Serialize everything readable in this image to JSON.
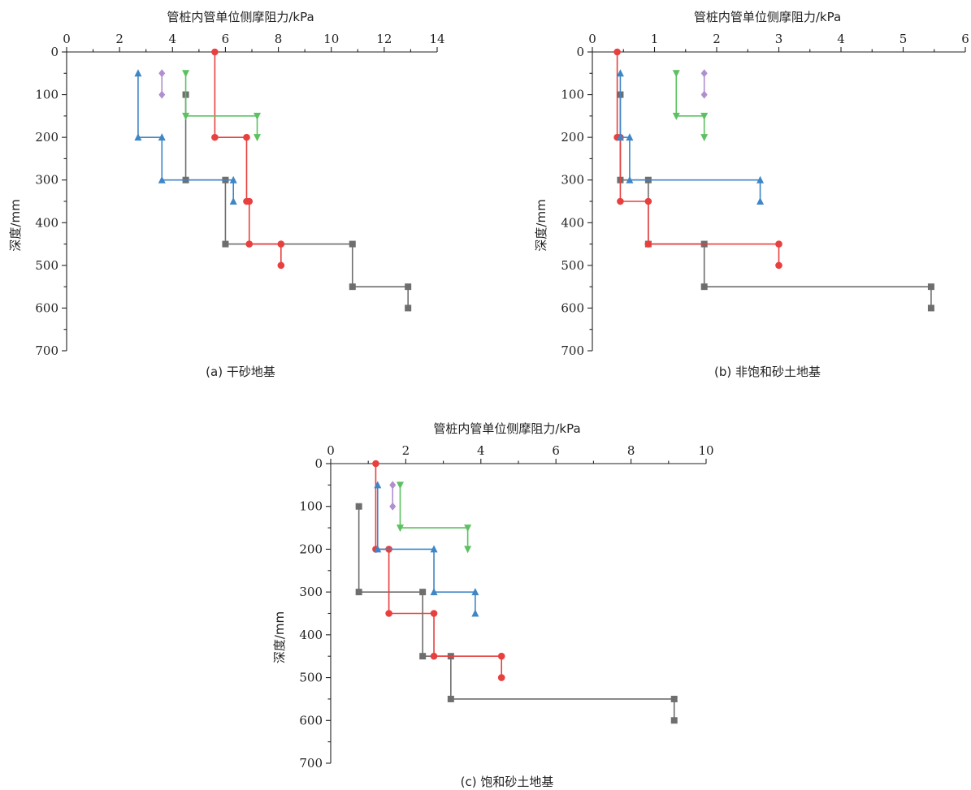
{
  "chart_data": [
    {
      "type": "line",
      "caption": "(a) 干砂地基",
      "xlabel": "管桩内管单位侧摩阻力/kPa",
      "ylabel": "深度/mm",
      "xlim": [
        0,
        14
      ],
      "ylim": [
        0,
        700
      ],
      "x_ticks": [
        0,
        2,
        4,
        6,
        8,
        10,
        12,
        14
      ],
      "y_ticks": [
        0,
        100,
        200,
        300,
        400,
        500,
        600,
        700
      ],
      "x_axis_position": "top",
      "y_inverted": true,
      "series": [
        {
          "color": "#6e6e6e",
          "marker": "square",
          "x": [
            4.5,
            4.5,
            6.0,
            6.0,
            10.8,
            10.8,
            12.9,
            12.9
          ],
          "y": [
            100,
            300,
            300,
            450,
            450,
            550,
            550,
            600
          ]
        },
        {
          "color": "#e8403f",
          "marker": "circle",
          "x": [
            5.6,
            5.6,
            6.8,
            6.8,
            6.9,
            6.9,
            8.1,
            8.1
          ],
          "y": [
            0,
            200,
            200,
            350,
            350,
            450,
            450,
            500
          ]
        },
        {
          "color": "#3f86c6",
          "marker": "triangle-up",
          "x": [
            2.7,
            2.7,
            3.6,
            3.6,
            6.3,
            6.3
          ],
          "y": [
            50,
            200,
            200,
            300,
            300,
            350
          ]
        },
        {
          "color": "#5cc160",
          "marker": "triangle-down",
          "x": [
            4.5,
            4.5,
            7.2,
            7.2
          ],
          "y": [
            50,
            150,
            150,
            200
          ]
        },
        {
          "color": "#b08fcf",
          "marker": "diamond",
          "x": [
            3.6,
            3.6
          ],
          "y": [
            50,
            100
          ]
        }
      ]
    },
    {
      "type": "line",
      "caption": "(b) 非饱和砂土地基",
      "xlabel": "管桩内管单位侧摩阻力/kPa",
      "ylabel": "深度/mm",
      "xlim": [
        0,
        6
      ],
      "ylim": [
        0,
        700
      ],
      "x_ticks": [
        0,
        1,
        2,
        3,
        4,
        5,
        6
      ],
      "y_ticks": [
        0,
        100,
        200,
        300,
        400,
        500,
        600,
        700
      ],
      "x_axis_position": "top",
      "y_inverted": true,
      "series": [
        {
          "color": "#6e6e6e",
          "marker": "square",
          "x": [
            0.45,
            0.45,
            0.9,
            0.9,
            1.8,
            1.8,
            5.45,
            5.45
          ],
          "y": [
            100,
            300,
            300,
            450,
            450,
            550,
            550,
            600
          ]
        },
        {
          "color": "#e8403f",
          "marker": "circle",
          "x": [
            0.4,
            0.4,
            0.45,
            0.45,
            0.9,
            0.9,
            3.0,
            3.0
          ],
          "y": [
            0,
            200,
            200,
            350,
            350,
            450,
            450,
            500
          ]
        },
        {
          "color": "#3f86c6",
          "marker": "triangle-up",
          "x": [
            0.45,
            0.45,
            0.6,
            0.6,
            2.7,
            2.7
          ],
          "y": [
            50,
            200,
            200,
            300,
            300,
            350
          ]
        },
        {
          "color": "#5cc160",
          "marker": "triangle-down",
          "x": [
            1.35,
            1.35,
            1.8,
            1.8
          ],
          "y": [
            50,
            150,
            150,
            200
          ]
        },
        {
          "color": "#b08fcf",
          "marker": "diamond",
          "x": [
            1.8,
            1.8
          ],
          "y": [
            50,
            100
          ]
        }
      ]
    },
    {
      "type": "line",
      "caption": "(c) 饱和砂土地基",
      "xlabel": "管桩内管单位侧摩阻力/kPa",
      "ylabel": "深度/mm",
      "xlim": [
        0,
        10
      ],
      "ylim": [
        0,
        700
      ],
      "x_ticks": [
        0,
        2,
        4,
        6,
        8,
        10
      ],
      "y_ticks": [
        0,
        100,
        200,
        300,
        400,
        500,
        600,
        700
      ],
      "x_axis_position": "top",
      "y_inverted": true,
      "series": [
        {
          "color": "#6e6e6e",
          "marker": "square",
          "x": [
            0.75,
            0.75,
            2.45,
            2.45,
            3.2,
            3.2,
            9.15,
            9.15
          ],
          "y": [
            100,
            300,
            300,
            450,
            450,
            550,
            550,
            600
          ]
        },
        {
          "color": "#e8403f",
          "marker": "circle",
          "x": [
            1.2,
            1.2,
            1.55,
            1.55,
            2.75,
            2.75,
            4.55,
            4.55
          ],
          "y": [
            0,
            200,
            200,
            350,
            350,
            450,
            450,
            500
          ]
        },
        {
          "color": "#3f86c6",
          "marker": "triangle-up",
          "x": [
            1.25,
            1.25,
            2.75,
            2.75,
            3.85,
            3.85
          ],
          "y": [
            50,
            200,
            200,
            300,
            300,
            350
          ]
        },
        {
          "color": "#5cc160",
          "marker": "triangle-down",
          "x": [
            1.85,
            1.85,
            3.65,
            3.65
          ],
          "y": [
            50,
            150,
            150,
            200
          ]
        },
        {
          "color": "#b08fcf",
          "marker": "diamond",
          "x": [
            1.65,
            1.65
          ],
          "y": [
            50,
            100
          ]
        }
      ]
    }
  ]
}
